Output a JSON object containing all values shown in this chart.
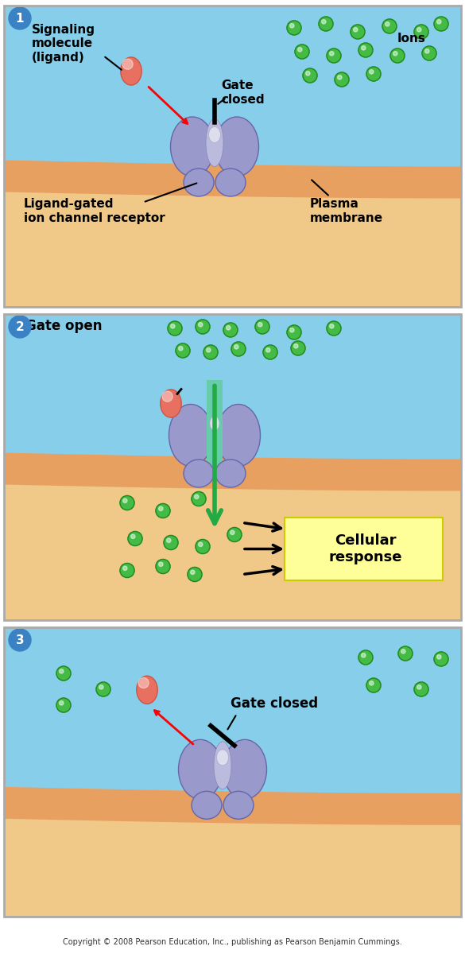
{
  "bg_blue": "#87CEEB",
  "bg_orange": "#F4A460",
  "membrane_color": "#DEB887",
  "protein_color": "#9999CC",
  "protein_dark": "#7777AA",
  "protein_light": "#BBBBDD",
  "ligand_color": "#E87060",
  "ligand_dark": "#CC4433",
  "ion_color": "#44BB44",
  "ion_outline": "#228822",
  "green_arrow": "#22AA44",
  "yellow_box": "#FFFF99",
  "panel_bg": "#F5F5F5",
  "circle_1_color": "#3366CC",
  "circle_1_text": "#FFFFFF",
  "panel1_labels": {
    "step": "1",
    "signaling": "Signaling\nmolecule\n(ligand)",
    "gate": "Gate\nclosed",
    "ions": "Ions",
    "receptor": "Ligand-gated\nion channel receptor",
    "plasma": "Plasma\nmembrane"
  },
  "panel2_labels": {
    "step": "2",
    "gate": "Gate open",
    "cellular": "Cellular\nresponse"
  },
  "panel3_labels": {
    "step": "3",
    "gate": "Gate closed"
  },
  "copyright": "Copyright © 2008 Pearson Education, Inc., publishing as Pearson Benjamin Cummings."
}
